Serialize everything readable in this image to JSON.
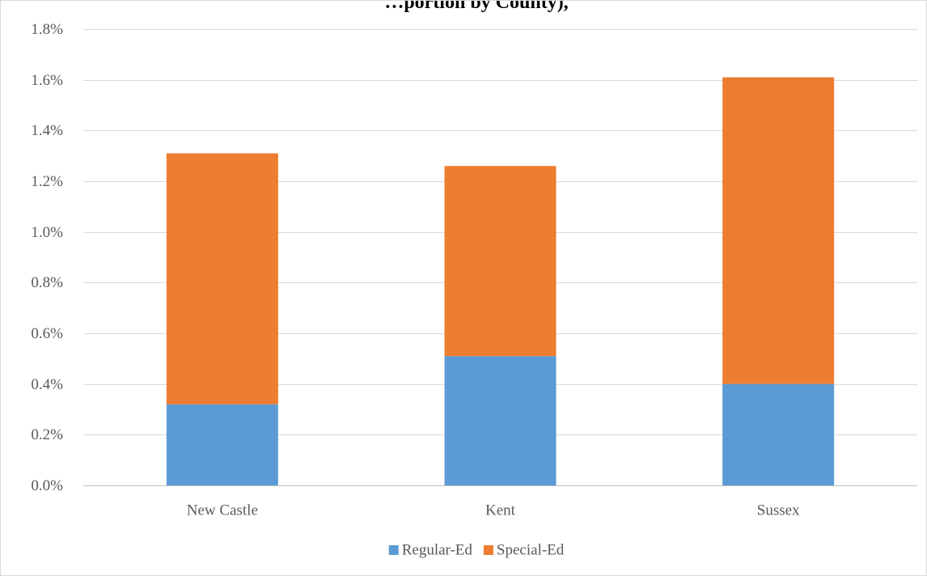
{
  "chart_data": {
    "type": "bar",
    "stacked": true,
    "title": "…portion by County),",
    "categories": [
      "New Castle",
      "Kent",
      "Sussex"
    ],
    "series": [
      {
        "name": "Regular-Ed",
        "color": "#5b9bd5",
        "values": [
          0.32,
          0.51,
          0.4
        ]
      },
      {
        "name": "Special-Ed",
        "color": "#ed7d31",
        "values": [
          0.99,
          0.75,
          1.21
        ]
      }
    ],
    "y_ticks": [
      "0.0%",
      "0.2%",
      "0.4%",
      "0.6%",
      "0.8%",
      "1.0%",
      "1.2%",
      "1.4%",
      "1.6%",
      "1.8%"
    ],
    "ylim": [
      0,
      1.8
    ],
    "y_unit": "%",
    "grid": true,
    "legend_position": "bottom"
  }
}
